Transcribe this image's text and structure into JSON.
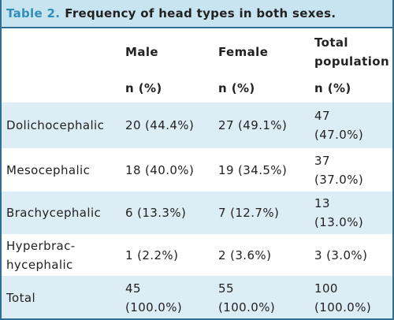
{
  "header": {
    "label": "Table 2.",
    "title": "Frequency of head types in both sexes."
  },
  "table": {
    "columns": [
      "Male",
      "Female",
      "Total\npopulation"
    ],
    "units": [
      "n (%)",
      "n (%)",
      "n (%)"
    ],
    "rows": [
      [
        "Dolichocephalic",
        "20 (44.4%)",
        "27 (49.1%)",
        "47\n(47.0%)"
      ],
      [
        "Mesocephalic",
        "18 (40.0%)",
        "19 (34.5%)",
        "37\n(37.0%)"
      ],
      [
        "Brachycephalic",
        "6 (13.3%)",
        "7 (12.7%)",
        "13\n(13.0%)"
      ],
      [
        "Hyperbrac-\nhycephalic",
        "1 (2.2%)",
        "2 (3.6%)",
        "3 (3.0%)"
      ],
      [
        "Total",
        "45\n(100.0%)",
        "55\n(100.0%)",
        "100\n(100.0%)"
      ]
    ]
  }
}
